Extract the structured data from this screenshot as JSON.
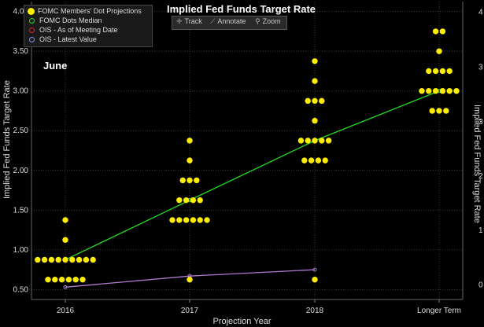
{
  "chart_data": {
    "type": "scatter",
    "title": "Implied Fed Funds Target Rate",
    "annotation": "June",
    "xlabel": "Projection Year",
    "ylabel": "Implied Fed Funds Target Rate",
    "ylabel_right": "Implied Fed Funds Target Rate",
    "categories": [
      "2016",
      "2017",
      "2018",
      "Longer Term"
    ],
    "ylim": [
      0.375,
      4.125
    ],
    "yticks": [
      "0.50",
      "1.00",
      "1.50",
      "2.00",
      "2.50",
      "3.00",
      "3.50",
      "4.00"
    ],
    "ytick_values": [
      0.5,
      1.0,
      1.5,
      2.0,
      2.5,
      3.0,
      3.5,
      4.0
    ],
    "right_ticks": [
      "0",
      "1",
      "2",
      "3",
      "4"
    ],
    "right_tick_values": [
      0.56,
      1.245,
      1.93,
      2.61,
      3.3,
      3.99
    ],
    "right_tick_labels_all": [
      "0",
      "1",
      "2",
      "3",
      "3",
      "4"
    ],
    "dots": [
      {
        "category": "2016",
        "value": 0.625,
        "count": 6
      },
      {
        "category": "2016",
        "value": 0.875,
        "count": 9
      },
      {
        "category": "2016",
        "value": 1.125,
        "count": 1
      },
      {
        "category": "2016",
        "value": 1.375,
        "count": 1
      },
      {
        "category": "2017",
        "value": 0.625,
        "count": 1
      },
      {
        "category": "2017",
        "value": 1.375,
        "count": 6
      },
      {
        "category": "2017",
        "value": 1.625,
        "count": 4
      },
      {
        "category": "2017",
        "value": 1.875,
        "count": 3
      },
      {
        "category": "2017",
        "value": 2.125,
        "count": 1
      },
      {
        "category": "2017",
        "value": 2.375,
        "count": 1
      },
      {
        "category": "2018",
        "value": 0.625,
        "count": 1
      },
      {
        "category": "2018",
        "value": 2.125,
        "count": 4
      },
      {
        "category": "2018",
        "value": 2.375,
        "count": 5
      },
      {
        "category": "2018",
        "value": 2.625,
        "count": 1
      },
      {
        "category": "2018",
        "value": 2.875,
        "count": 3
      },
      {
        "category": "2018",
        "value": 3.125,
        "count": 1
      },
      {
        "category": "2018",
        "value": 3.375,
        "count": 1
      },
      {
        "category": "Longer Term",
        "value": 2.75,
        "count": 3
      },
      {
        "category": "Longer Term",
        "value": 3.0,
        "count": 6
      },
      {
        "category": "Longer Term",
        "value": 3.25,
        "count": 4
      },
      {
        "category": "Longer Term",
        "value": 3.5,
        "count": 1
      },
      {
        "category": "Longer Term",
        "value": 3.75,
        "count": 2
      }
    ],
    "series": [
      {
        "name": "FOMC Dots Median",
        "color": "#22dd22",
        "x": [
          "2016",
          "2017",
          "2018",
          "Longer Term"
        ],
        "values": [
          0.875,
          1.625,
          2.375,
          3.0
        ]
      },
      {
        "name": "OIS - Latest Value",
        "color": "#b07ad0",
        "x": [
          "2016",
          "2017",
          "2018"
        ],
        "values": [
          0.53,
          0.67,
          0.75
        ]
      }
    ],
    "legend": [
      {
        "label": "FOMC Members' Dot Projections",
        "color": "#ffee00",
        "marker": "dot-large"
      },
      {
        "label": "FOMC Dots Median",
        "color": "#22dd22",
        "marker": "ring"
      },
      {
        "label": "OIS - As of Meeting Date",
        "color": "#dd2222",
        "marker": "ring"
      },
      {
        "label": "OIS - Latest Value",
        "color": "#8888ff",
        "marker": "ring"
      }
    ],
    "legend_position": "top-left",
    "grid": true
  },
  "toolbar": {
    "track": "Track",
    "annotate": "Annotate",
    "zoom": "Zoom"
  }
}
